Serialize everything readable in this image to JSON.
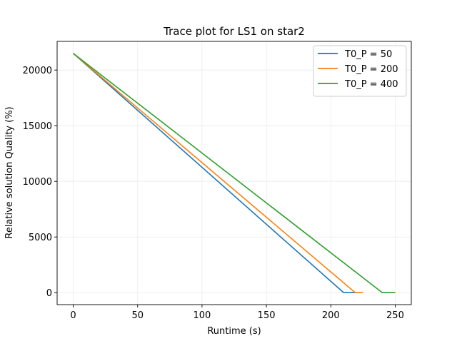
{
  "chart_data": {
    "type": "line",
    "title": "Trace plot for LS1 on star2",
    "xlabel": "Runtime (s)",
    "ylabel": "Relative solution Quality (%)",
    "xlim": [
      -12.5,
      262.5
    ],
    "ylim": [
      -1075,
      22575
    ],
    "xticks": [
      0,
      50,
      100,
      150,
      200,
      250
    ],
    "yticks": [
      0,
      5000,
      10000,
      15000,
      20000
    ],
    "grid": true,
    "legend_position": "upper right",
    "series": [
      {
        "name": "T0_P = 50",
        "color": "#1f77b4",
        "x": [
          0,
          210,
          220
        ],
        "y": [
          21500,
          0,
          0
        ]
      },
      {
        "name": "T0_P = 200",
        "color": "#ff7f0e",
        "x": [
          0,
          219,
          225
        ],
        "y": [
          21500,
          0,
          0
        ]
      },
      {
        "name": "T0_P = 400",
        "color": "#2ca02c",
        "x": [
          0,
          240,
          250
        ],
        "y": [
          21500,
          0,
          0
        ]
      }
    ]
  }
}
